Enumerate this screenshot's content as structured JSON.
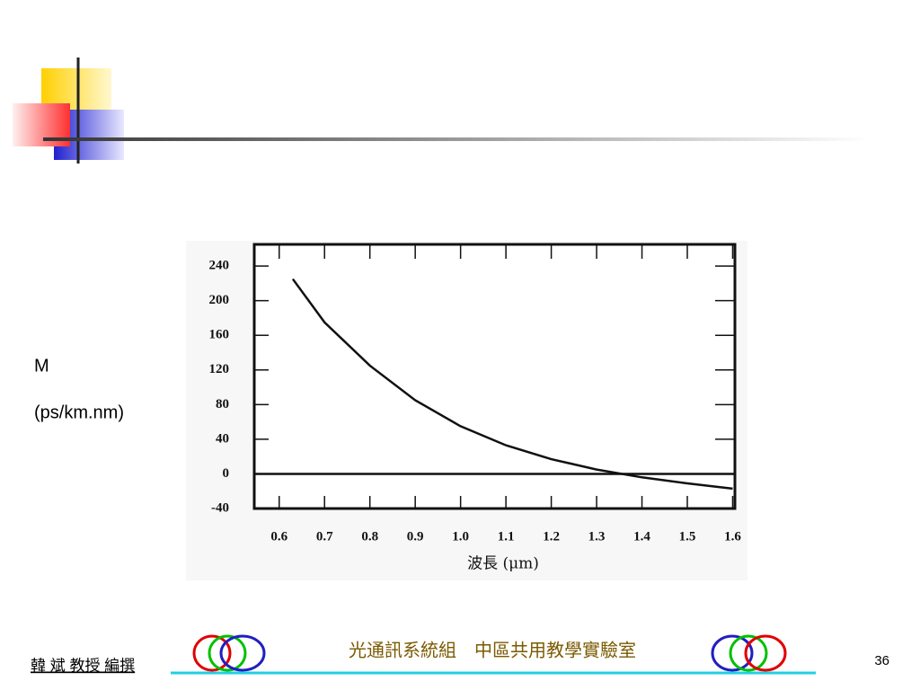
{
  "chart_data": {
    "type": "line",
    "y_label_lines": [
      "M",
      "(ps/km.nm)"
    ],
    "x_label": "波長 (μm)",
    "x": [
      0.63,
      0.7,
      0.8,
      0.9,
      1.0,
      1.1,
      1.2,
      1.3,
      1.4,
      1.5,
      1.6
    ],
    "values": [
      225,
      175,
      125,
      85,
      55,
      33,
      17,
      5,
      -4,
      -11,
      -17
    ],
    "color": "#111111",
    "xlim": [
      0.545,
      1.605
    ],
    "xticks": [
      0.6,
      0.7,
      0.8,
      0.9,
      {
        "value": 1,
        "label": "1.0"
      },
      1.1,
      1.2,
      1.3,
      1.4,
      1.5,
      1.6
    ],
    "ylim": [
      -40,
      265
    ],
    "yticks": [
      240,
      200,
      160,
      120,
      80,
      40,
      0,
      -40
    ],
    "zero_line": true
  },
  "footer": {
    "author": "韓 斌 教授 編撰",
    "lab": "光通訊系統組　中區共用教學實驗室",
    "page": "36"
  }
}
